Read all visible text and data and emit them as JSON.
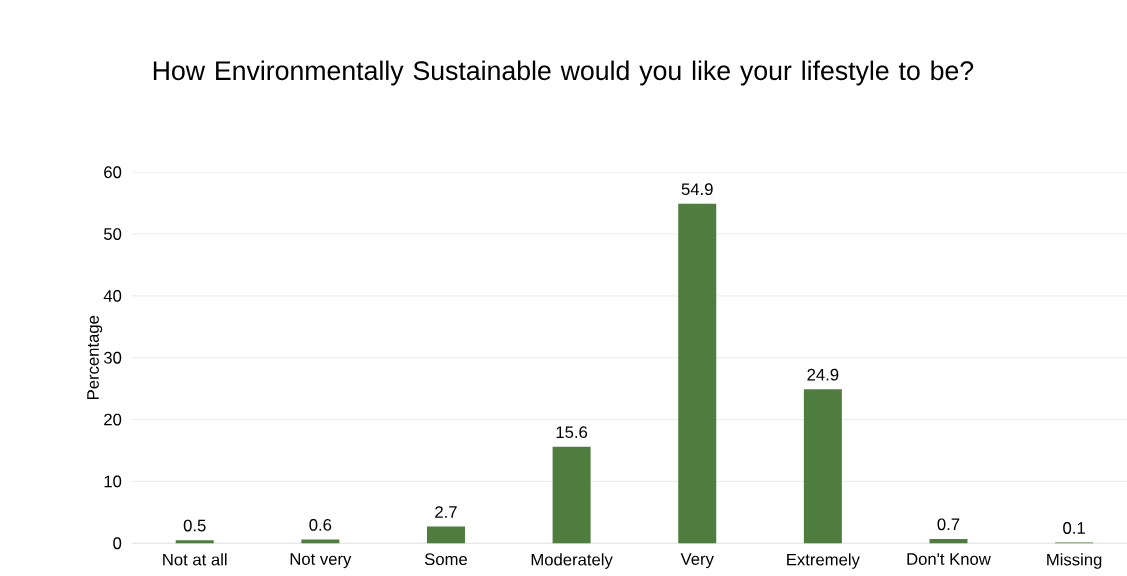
{
  "chart_data": {
    "type": "bar",
    "title": "How Environmentally Sustainable would you like your lifestyle to be?",
    "ylabel": "Percentage",
    "categories": [
      "Not at all",
      "Not very",
      "Some",
      "Moderately",
      "Very",
      "Extremely",
      "Don't Know",
      "Missing"
    ],
    "values": [
      0.5,
      0.6,
      2.7,
      15.6,
      54.9,
      24.9,
      0.7,
      0.1
    ],
    "color": "#4e7d3f",
    "ylim": [
      0,
      60
    ],
    "yticks": [
      0,
      10,
      20,
      30,
      40,
      50,
      60
    ],
    "grid": "y",
    "data_labels": true
  }
}
